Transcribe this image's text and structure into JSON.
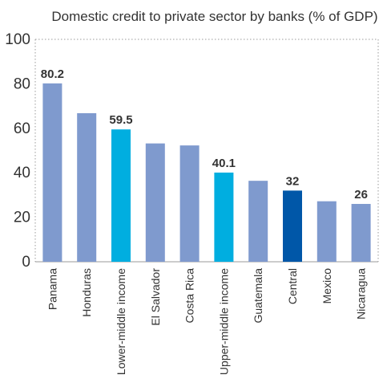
{
  "chart_data": {
    "type": "bar",
    "title": "Domestic credit to private sector by banks (% of GDP)",
    "xlabel": "",
    "ylabel": "",
    "ylim": [
      0,
      100
    ],
    "yticks": [
      "0",
      "20",
      "40",
      "60",
      "80",
      "100"
    ],
    "grid": false,
    "categories": [
      "Panama",
      "Honduras",
      "Lower-middle income",
      "El Salvador",
      "Costa Rica",
      "Upper-middle income",
      "Guatemala",
      "Central",
      "Mexico",
      "Nicaragua"
    ],
    "values": [
      80.2,
      66.8,
      59.5,
      53.2,
      52.3,
      40.1,
      36.4,
      32,
      27.2,
      26
    ],
    "data_labels": [
      "80.2",
      "",
      "59.5",
      "",
      "",
      "40.1",
      "",
      "32",
      "",
      "26"
    ],
    "colors": [
      "#7f9ace",
      "#7f9ace",
      "#00aee0",
      "#7f9ace",
      "#7f9ace",
      "#00aee0",
      "#7f9ace",
      "#0057a8",
      "#7f9ace",
      "#7f9ace"
    ]
  }
}
